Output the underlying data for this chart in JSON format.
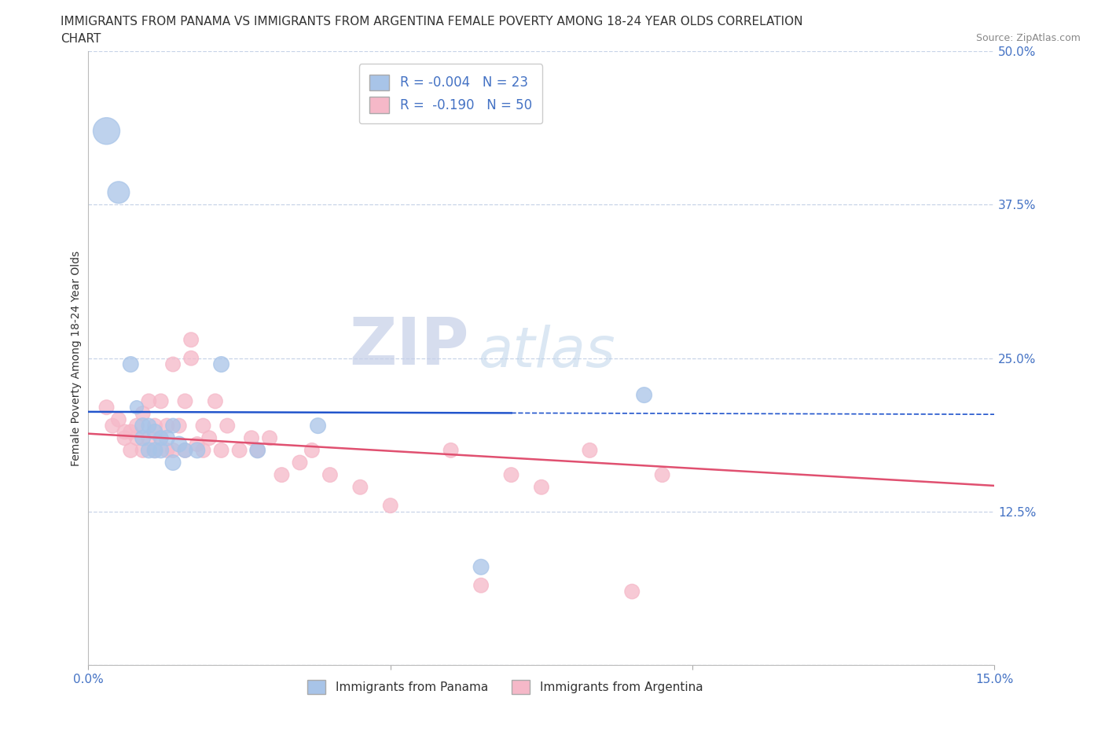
{
  "title_line1": "IMMIGRANTS FROM PANAMA VS IMMIGRANTS FROM ARGENTINA FEMALE POVERTY AMONG 18-24 YEAR OLDS CORRELATION",
  "title_line2": "CHART",
  "source_text": "Source: ZipAtlas.com",
  "ylabel": "Female Poverty Among 18-24 Year Olds",
  "xlim": [
    0.0,
    0.15
  ],
  "ylim": [
    0.0,
    0.5
  ],
  "xticks": [
    0.0,
    0.05,
    0.1,
    0.15
  ],
  "yticks": [
    0.0,
    0.125,
    0.25,
    0.375,
    0.5
  ],
  "panama_R": -0.004,
  "panama_N": 23,
  "argentina_R": -0.19,
  "argentina_N": 50,
  "panama_color": "#a8c4e8",
  "argentina_color": "#f5b8c8",
  "trendline_panama_color": "#2255cc",
  "trendline_argentina_color": "#e05070",
  "background_color": "#ffffff",
  "grid_color": "#c8d4e8",
  "watermark_zip": "ZIP",
  "watermark_atlas": "atlas",
  "panama_x": [
    0.003,
    0.005,
    0.007,
    0.008,
    0.009,
    0.009,
    0.01,
    0.01,
    0.011,
    0.011,
    0.012,
    0.012,
    0.013,
    0.014,
    0.014,
    0.015,
    0.016,
    0.018,
    0.022,
    0.028,
    0.038,
    0.065,
    0.092
  ],
  "panama_y": [
    0.435,
    0.385,
    0.245,
    0.21,
    0.195,
    0.185,
    0.195,
    0.175,
    0.19,
    0.175,
    0.185,
    0.175,
    0.185,
    0.195,
    0.165,
    0.18,
    0.175,
    0.175,
    0.245,
    0.175,
    0.195,
    0.08,
    0.22
  ],
  "panama_size": [
    600,
    400,
    200,
    150,
    200,
    200,
    180,
    200,
    200,
    200,
    180,
    200,
    200,
    180,
    200,
    200,
    180,
    200,
    200,
    200,
    200,
    200,
    200
  ],
  "argentina_x": [
    0.003,
    0.004,
    0.005,
    0.006,
    0.006,
    0.007,
    0.007,
    0.008,
    0.008,
    0.009,
    0.009,
    0.01,
    0.01,
    0.011,
    0.011,
    0.012,
    0.012,
    0.013,
    0.013,
    0.014,
    0.014,
    0.015,
    0.016,
    0.016,
    0.017,
    0.017,
    0.018,
    0.019,
    0.019,
    0.02,
    0.021,
    0.022,
    0.023,
    0.025,
    0.027,
    0.028,
    0.03,
    0.032,
    0.035,
    0.037,
    0.04,
    0.045,
    0.05,
    0.06,
    0.065,
    0.07,
    0.075,
    0.083,
    0.09,
    0.095
  ],
  "argentina_y": [
    0.21,
    0.195,
    0.2,
    0.185,
    0.19,
    0.19,
    0.175,
    0.185,
    0.195,
    0.175,
    0.205,
    0.215,
    0.185,
    0.195,
    0.175,
    0.215,
    0.185,
    0.195,
    0.175,
    0.245,
    0.175,
    0.195,
    0.215,
    0.175,
    0.25,
    0.265,
    0.18,
    0.195,
    0.175,
    0.185,
    0.215,
    0.175,
    0.195,
    0.175,
    0.185,
    0.175,
    0.185,
    0.155,
    0.165,
    0.175,
    0.155,
    0.145,
    0.13,
    0.175,
    0.065,
    0.155,
    0.145,
    0.175,
    0.06,
    0.155
  ],
  "argentina_size": [
    180,
    180,
    180,
    180,
    180,
    180,
    180,
    180,
    180,
    180,
    180,
    180,
    180,
    180,
    180,
    180,
    180,
    180,
    180,
    180,
    180,
    180,
    180,
    180,
    180,
    180,
    180,
    180,
    180,
    180,
    180,
    180,
    180,
    180,
    180,
    180,
    180,
    180,
    180,
    180,
    180,
    180,
    180,
    180,
    180,
    180,
    180,
    180,
    180,
    180
  ]
}
